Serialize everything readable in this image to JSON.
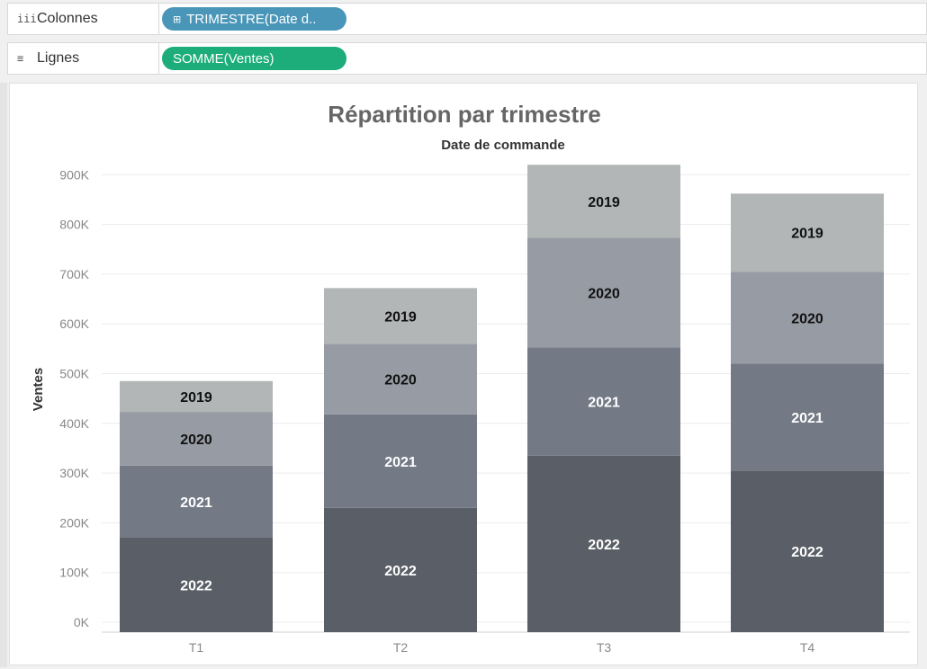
{
  "shelves": {
    "columns": {
      "label": "Colonnes",
      "icon": "columns-icon",
      "pill": "TRIMESTRE(Date d..",
      "pill_icon": "expand-icon"
    },
    "rows": {
      "label": "Lignes",
      "icon": "rows-icon",
      "pill": "SOMME(Ventes)"
    }
  },
  "colors": {
    "pill_blue": "#4a96b8",
    "pill_green": "#1cad7a",
    "2019": "#b2b6b7",
    "2020": "#979ba3",
    "2021": "#737a86",
    "2022": "#5a5e66"
  },
  "chart_data": {
    "type": "bar",
    "stacked": true,
    "title": "Répartition par trimestre",
    "subtitle": "Date de commande",
    "xlabel": "",
    "ylabel": "Ventes",
    "ylim": [
      0,
      950000
    ],
    "yticks": [
      0,
      100000,
      200000,
      300000,
      400000,
      500000,
      600000,
      700000,
      800000,
      900000
    ],
    "ytick_labels": [
      "0K",
      "100K",
      "200K",
      "300K",
      "400K",
      "500K",
      "600K",
      "700K",
      "800K",
      "900K"
    ],
    "categories": [
      "T1",
      "T2",
      "T3",
      "T4"
    ],
    "grid": true,
    "series": [
      {
        "name": "2022",
        "values": [
          170000,
          230000,
          335000,
          305000
        ]
      },
      {
        "name": "2021",
        "values": [
          145000,
          188000,
          218000,
          215000
        ]
      },
      {
        "name": "2020",
        "values": [
          108000,
          142000,
          220000,
          185000
        ]
      },
      {
        "name": "2019",
        "values": [
          62000,
          112000,
          147000,
          157000
        ]
      }
    ]
  }
}
